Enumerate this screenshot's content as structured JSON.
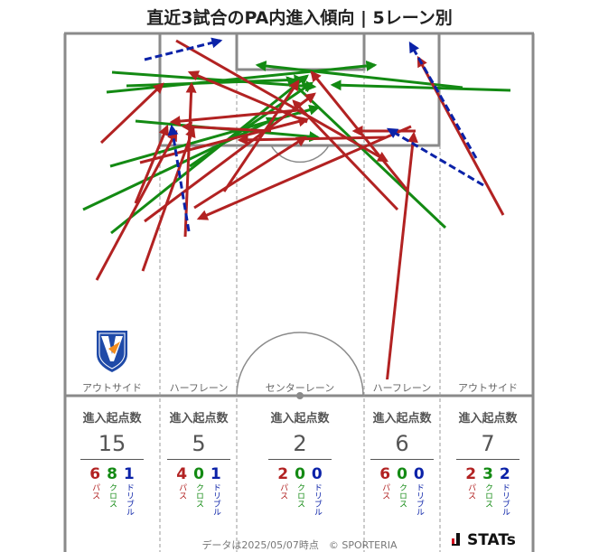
{
  "title": "直近3試合のPA内進入傾向 | 5レーン別",
  "lanes": [
    {
      "name": "アウトサイド",
      "header": "進入起点数",
      "total": "15",
      "pass": "6",
      "cross": "8",
      "dribble": "1"
    },
    {
      "name": "ハーフレーン",
      "header": "進入起点数",
      "total": "5",
      "pass": "4",
      "cross": "0",
      "dribble": "1"
    },
    {
      "name": "センターレーン",
      "header": "進入起点数",
      "total": "2",
      "pass": "2",
      "cross": "0",
      "dribble": "0"
    },
    {
      "name": "ハーフレーン",
      "header": "進入起点数",
      "total": "6",
      "pass": "6",
      "cross": "0",
      "dribble": "0"
    },
    {
      "name": "アウトサイド",
      "header": "進入起点数",
      "total": "7",
      "pass": "2",
      "cross": "3",
      "dribble": "2"
    }
  ],
  "legend": {
    "pass": "パス",
    "cross": "クロス",
    "dribble": "ドリブル"
  },
  "colors": {
    "pass": "#b22222",
    "cross": "#138a13",
    "dribble": "#0b22a8",
    "pitch_line": "#888888"
  },
  "footer": "データは2025/05/07時点　© SPORTERIA",
  "brand": "STATs",
  "team_logo": "v-varen-crest-icon"
}
